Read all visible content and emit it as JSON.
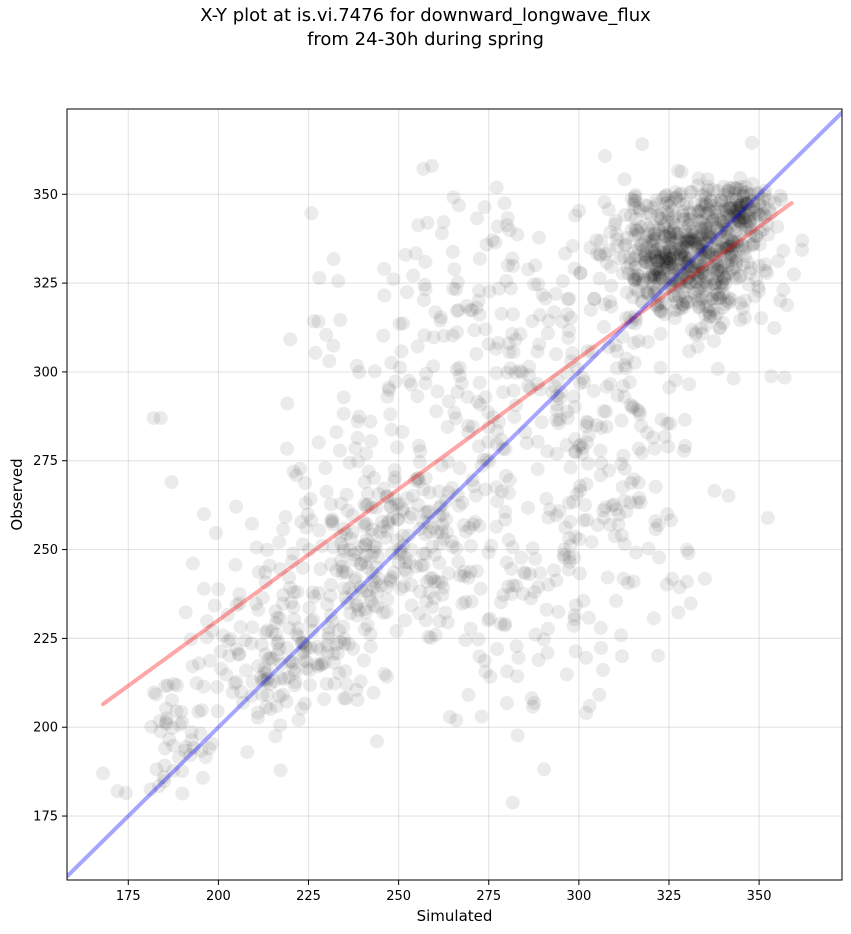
{
  "chart_data": {
    "type": "scatter",
    "title_line1": "X-Y plot at is.vi.7476 for downward_longwave_flux",
    "title_line2": "from 24-30h during spring",
    "xlabel": "Simulated",
    "ylabel": "Observed",
    "xlim": [
      158,
      373
    ],
    "ylim": [
      157,
      374
    ],
    "xticks": [
      175,
      200,
      225,
      250,
      275,
      300,
      325,
      350
    ],
    "yticks": [
      175,
      200,
      225,
      250,
      275,
      300,
      325,
      350
    ],
    "grid": true,
    "point_color": "#000000",
    "point_alpha": 0.08,
    "clusters": [
      {
        "cx": 330,
        "cy": 333,
        "sx": 10,
        "sy": 10,
        "n": 620
      },
      {
        "cx": 344,
        "cy": 346,
        "sx": 5,
        "sy": 4,
        "n": 120
      },
      {
        "cx": 245,
        "cy": 250,
        "sx": 14,
        "sy": 13,
        "n": 260
      },
      {
        "cx": 215,
        "cy": 220,
        "sx": 11,
        "sy": 11,
        "n": 170
      },
      {
        "cx": 190,
        "cy": 196,
        "sx": 7,
        "sy": 9,
        "n": 50
      },
      {
        "cx": 280,
        "cy": 300,
        "sx": 28,
        "sy": 28,
        "n": 320
      },
      {
        "cx": 305,
        "cy": 265,
        "sx": 18,
        "sy": 25,
        "n": 170
      },
      {
        "cx": 285,
        "cy": 225,
        "sx": 14,
        "sy": 15,
        "n": 40
      }
    ],
    "extra_points": [
      [
        182,
        287
      ],
      [
        184,
        287
      ],
      [
        187,
        269
      ],
      [
        196,
        260
      ],
      [
        208,
        193
      ],
      [
        244,
        196
      ],
      [
        266,
        202
      ],
      [
        273,
        203
      ],
      [
        302,
        204
      ],
      [
        303,
        206
      ],
      [
        312,
        220
      ],
      [
        330,
        250
      ],
      [
        258,
        342
      ],
      [
        246,
        329
      ],
      [
        262,
        339
      ],
      [
        299,
        344
      ],
      [
        168,
        187
      ],
      [
        172,
        182
      ]
    ],
    "lines": [
      {
        "name": "regression",
        "color": "#ff0000",
        "alpha": 0.35,
        "x": [
          168,
          359
        ],
        "y": [
          206.5,
          347.5
        ]
      },
      {
        "name": "one-to-one",
        "color": "#0000ff",
        "alpha": 0.35,
        "x": [
          158,
          373
        ],
        "y": [
          158,
          373
        ]
      }
    ]
  }
}
